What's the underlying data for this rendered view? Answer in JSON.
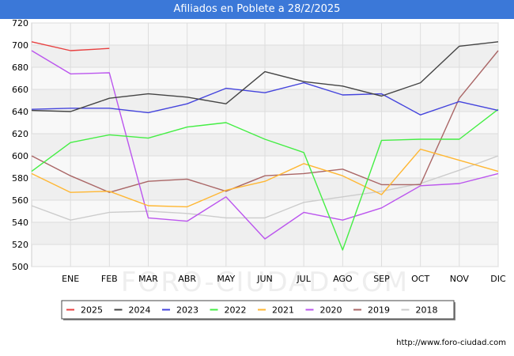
{
  "chart_data": {
    "type": "line",
    "title": "Afiliados en Poblete a 28/2/2025",
    "categories": [
      "",
      "ENE",
      "FEB",
      "MAR",
      "ABR",
      "MAY",
      "JUN",
      "JUL",
      "AGO",
      "SEP",
      "OCT",
      "NOV",
      "DIC"
    ],
    "ylim": [
      500,
      720
    ],
    "yticks": [
      500,
      520,
      540,
      560,
      580,
      600,
      620,
      640,
      660,
      680,
      700,
      720
    ],
    "grid": true,
    "legend_position": "bottom",
    "series": [
      {
        "name": "2025",
        "color": "#e84040",
        "values": [
          703,
          695,
          697,
          null,
          null,
          null,
          null,
          null,
          null,
          null,
          null,
          null,
          null
        ]
      },
      {
        "name": "2024",
        "color": "#444444",
        "values": [
          641,
          640,
          652,
          656,
          653,
          647,
          676,
          667,
          663,
          654,
          666,
          699,
          703
        ]
      },
      {
        "name": "2023",
        "color": "#4444dd",
        "values": [
          642,
          643,
          643,
          639,
          647,
          661,
          657,
          666,
          655,
          656,
          637,
          649,
          641
        ]
      },
      {
        "name": "2022",
        "color": "#44ee44",
        "values": [
          586,
          612,
          619,
          616,
          626,
          630,
          615,
          603,
          515,
          614,
          615,
          615,
          642
        ]
      },
      {
        "name": "2021",
        "color": "#ffb733",
        "values": [
          584,
          567,
          568,
          555,
          554,
          569,
          577,
          593,
          582,
          565,
          606,
          596,
          586
        ]
      },
      {
        "name": "2020",
        "color": "#bb55ee",
        "values": [
          695,
          674,
          675,
          544,
          541,
          563,
          525,
          549,
          542,
          553,
          573,
          575,
          584
        ]
      },
      {
        "name": "2019",
        "color": "#aa6666",
        "values": [
          600,
          582,
          567,
          577,
          579,
          568,
          582,
          584,
          588,
          574,
          574,
          652,
          695
        ]
      },
      {
        "name": "2018",
        "color": "#cccccc",
        "values": [
          555,
          542,
          549,
          550,
          548,
          544,
          544,
          558,
          563,
          568,
          575,
          587,
          600
        ]
      }
    ]
  },
  "footer": "http://www.foro-ciudad.com",
  "watermark": "FORO-CIUDAD.COM"
}
